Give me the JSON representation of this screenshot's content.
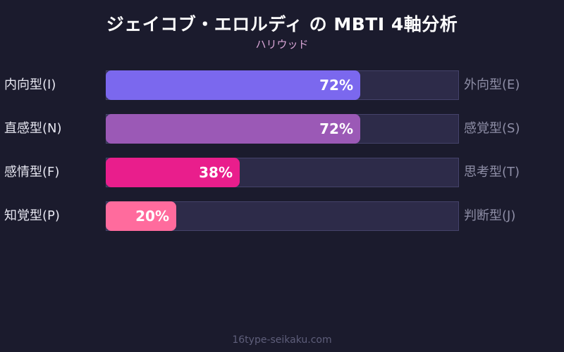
{
  "header": {
    "title": "ジェイコブ・エロルディ の MBTI 4軸分析",
    "subtitle": "ハリウッド"
  },
  "footer": {
    "text": "16type-seikaku.com"
  },
  "colors": {
    "background": "#1b1b2d",
    "track": "#2d2b49",
    "ie": "#7b68ee",
    "ns": "#9b59b6",
    "ft": "#e91e8c",
    "pj": "#ff6b9d"
  },
  "axes": [
    {
      "left": "内向型(I)",
      "right": "外向型(E)",
      "value": 72,
      "label": "72%",
      "color": "#7b68ee"
    },
    {
      "left": "直感型(N)",
      "right": "感覚型(S)",
      "value": 72,
      "label": "72%",
      "color": "#9b59b6"
    },
    {
      "left": "感情型(F)",
      "right": "思考型(T)",
      "value": 38,
      "label": "38%",
      "color": "#e91e8c"
    },
    {
      "left": "知覚型(P)",
      "right": "判断型(J)",
      "value": 20,
      "label": "20%",
      "color": "#ff6b9d"
    }
  ],
  "chart_data": {
    "type": "bar",
    "orientation": "horizontal",
    "title": "ジェイコブ・エロルディ の MBTI 4軸分析",
    "subtitle": "ハリウッド",
    "categories": [
      "内向型(I) / 外向型(E)",
      "直感型(N) / 感覚型(S)",
      "感情型(F) / 思考型(T)",
      "知覚型(P) / 判断型(J)"
    ],
    "left_labels": [
      "内向型(I)",
      "直感型(N)",
      "感情型(F)",
      "知覚型(P)"
    ],
    "right_labels": [
      "外向型(E)",
      "感覚型(S)",
      "思考型(T)",
      "判断型(J)"
    ],
    "values": [
      72,
      72,
      38,
      20
    ],
    "xlim": [
      0,
      100
    ],
    "unit": "%",
    "grid": false,
    "legend": "none"
  }
}
